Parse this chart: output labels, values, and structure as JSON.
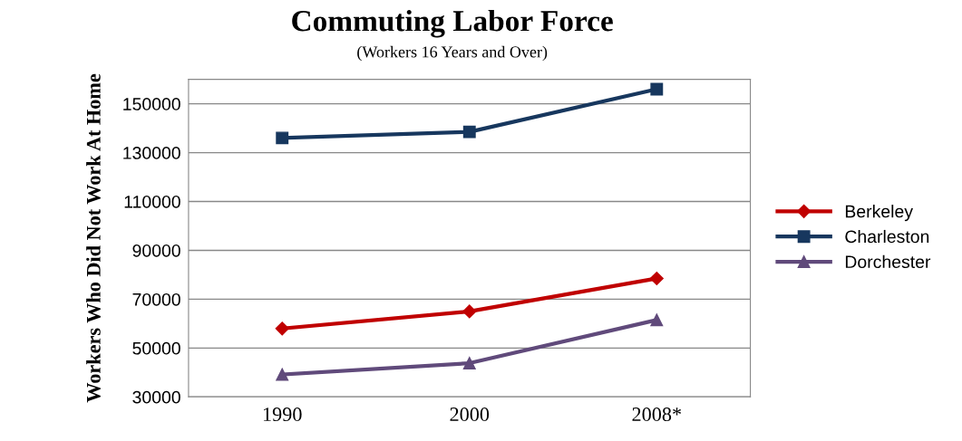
{
  "chart_data": {
    "type": "line",
    "title": "Commuting Labor Force",
    "subtitle": "(Workers 16 Years and Over)",
    "ylabel": "Workers Who Did Not Work At Home",
    "categories": [
      "1990",
      "2000",
      "2008*"
    ],
    "series": [
      {
        "name": "Berkeley",
        "color": "#c00000",
        "marker": "diamond",
        "values": [
          58000,
          65000,
          78500
        ]
      },
      {
        "name": "Charleston",
        "color": "#17375e",
        "marker": "square",
        "values": [
          136000,
          138500,
          156000
        ]
      },
      {
        "name": "Dorchester",
        "color": "#604a7b",
        "marker": "triangle",
        "values": [
          39200,
          43800,
          61500
        ]
      }
    ],
    "ylim": [
      30000,
      160000
    ],
    "yticks": [
      30000,
      50000,
      70000,
      90000,
      110000,
      130000,
      150000
    ],
    "grid": "y",
    "legend": "right",
    "line_style": "solid"
  }
}
